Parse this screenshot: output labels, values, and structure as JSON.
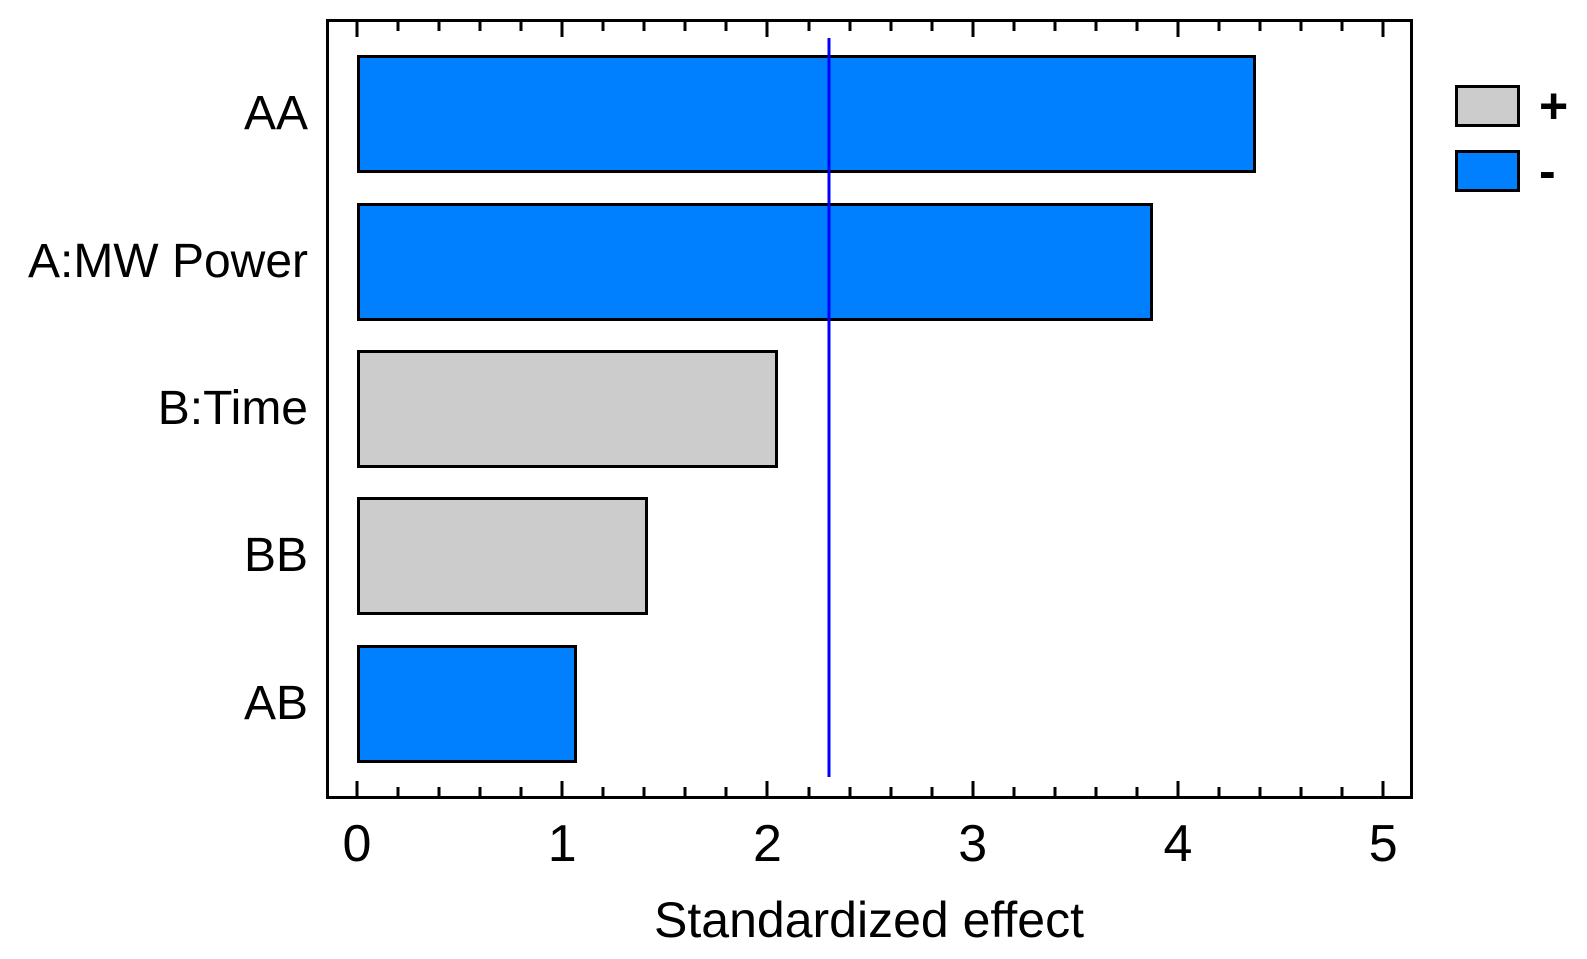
{
  "chart_data": {
    "type": "bar",
    "orientation": "horizontal",
    "title": "",
    "xlabel": "Standardized effect",
    "ylabel": "",
    "categories": [
      "AA",
      "A:MW Power",
      "B:Time",
      "BB",
      "AB"
    ],
    "values": [
      4.38,
      3.88,
      2.05,
      1.42,
      1.07
    ],
    "signs": [
      "-",
      "-",
      "+",
      "+",
      "-"
    ],
    "x_ticks": [
      0,
      1,
      2,
      3,
      4,
      5
    ],
    "x_minor_tick_step": 0.2,
    "xlim": [
      -0.15,
      5.15
    ],
    "reference_line_x": 2.3,
    "grid": false,
    "legend_position": "top-right-outside",
    "legend": [
      {
        "label": "+",
        "color": "#CCCCCC"
      },
      {
        "label": "-",
        "color": "#0080FF"
      }
    ],
    "colors": {
      "positive_bar": "#CCCCCC",
      "negative_bar": "#0080FF",
      "bar_border": "#000000",
      "reference_line": "#0000FF",
      "axis": "#000000"
    }
  }
}
